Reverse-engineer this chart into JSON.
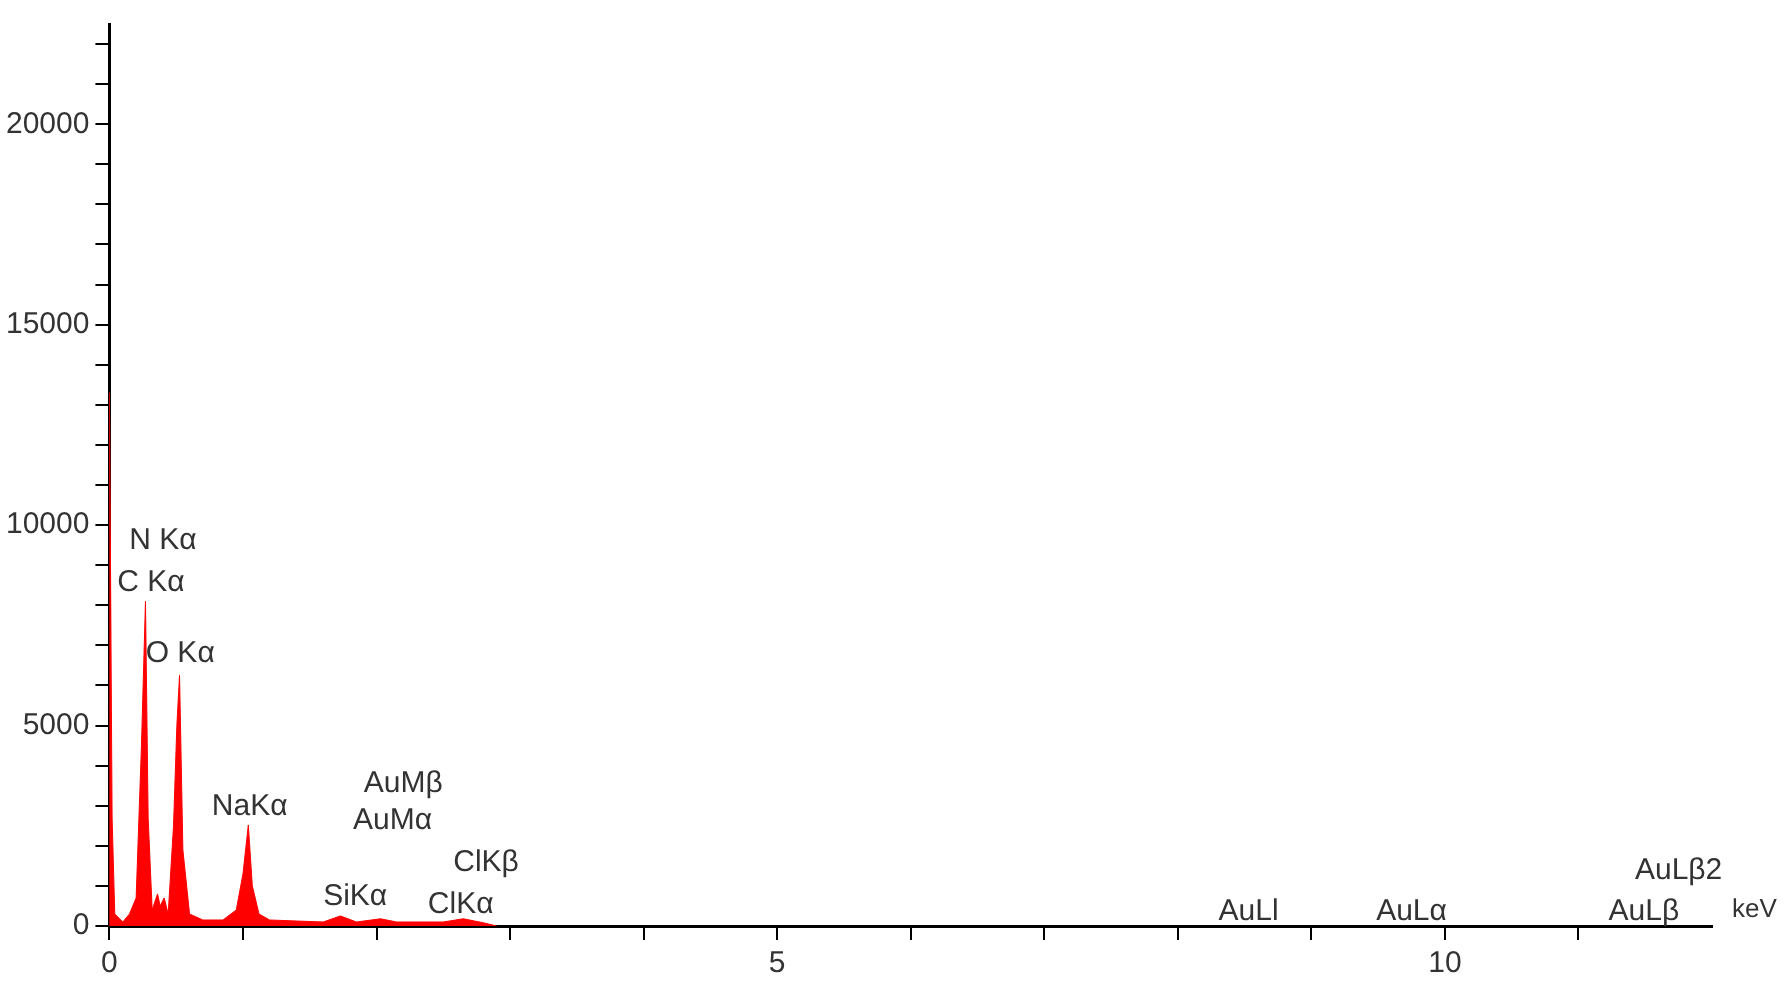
{
  "chart_data": {
    "type": "area",
    "xlabel": "keV",
    "x": [
      0,
      0,
      0.02,
      0.04,
      0.1,
      0.15,
      0.2,
      0.24,
      0.27,
      0.29,
      0.32,
      0.36,
      0.38,
      0.41,
      0.44,
      0.48,
      0.505,
      0.525,
      0.55,
      0.6,
      0.7,
      0.85,
      0.95,
      1.0,
      1.04,
      1.07,
      1.12,
      1.2,
      1.6,
      1.73,
      1.85,
      2.03,
      2.15,
      2.5,
      2.65,
      2.8,
      2.9
    ],
    "series": [
      {
        "color": "#ff0000",
        "values": [
          0,
          13300,
          2700,
          300,
          100,
          300,
          700,
          4500,
          8100,
          2700,
          400,
          800,
          500,
          700,
          300,
          2500,
          5000,
          6250,
          1900,
          300,
          150,
          150,
          400,
          1300,
          2520,
          1000,
          300,
          150,
          100,
          250,
          100,
          180,
          100,
          100,
          180,
          80,
          0
        ]
      }
    ],
    "xlim": [
      0,
      12
    ],
    "xticks": [
      0,
      {
        "value": 1,
        "label": null
      },
      {
        "value": 2,
        "label": null
      },
      {
        "value": 3,
        "label": null
      },
      {
        "value": 4,
        "label": null
      },
      5,
      {
        "value": 6,
        "label": null
      },
      {
        "value": 7,
        "label": null
      },
      {
        "value": 8,
        "label": null
      },
      {
        "value": 9,
        "label": null
      },
      10,
      {
        "value": 11,
        "label": null
      }
    ],
    "ylim": [
      0,
      22500
    ],
    "yticks": [
      0,
      {
        "value": 1000,
        "label": null
      },
      {
        "value": 2000,
        "label": null
      },
      {
        "value": 3000,
        "label": null
      },
      {
        "value": 4000,
        "label": null
      },
      5000,
      {
        "value": 6000,
        "label": null
      },
      {
        "value": 7000,
        "label": null
      },
      {
        "value": 8000,
        "label": null
      },
      {
        "value": 9000,
        "label": null
      },
      10000,
      {
        "value": 11000,
        "label": null
      },
      {
        "value": 12000,
        "label": null
      },
      {
        "value": 13000,
        "label": null
      },
      {
        "value": 14000,
        "label": null
      },
      15000,
      {
        "value": 16000,
        "label": null
      },
      {
        "value": 17000,
        "label": null
      },
      {
        "value": 18000,
        "label": null
      },
      {
        "value": 19000,
        "label": null
      },
      20000,
      {
        "value": 21000,
        "label": null
      },
      {
        "value": 22000,
        "label": null
      }
    ],
    "grid": false,
    "legend": false,
    "marker": "none",
    "line_style": "solid",
    "annotations": [
      "N Kα",
      "C Kα",
      "O Kα",
      "NaKα",
      "SiKα",
      "AuMβ",
      "AuMα",
      "ClKβ",
      "ClKα",
      "AuLl",
      "AuLα",
      "AuLβ2",
      "AuLβ"
    ]
  }
}
